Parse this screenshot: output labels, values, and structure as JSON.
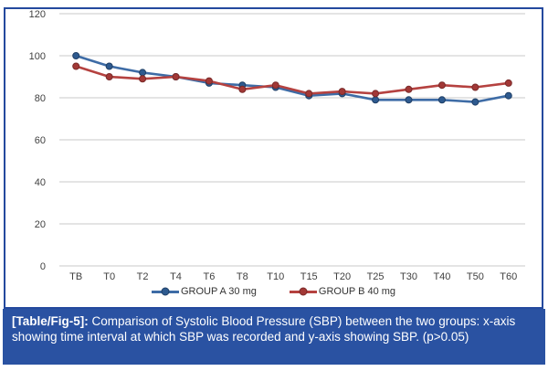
{
  "figure": {
    "caption_label": "[Table/Fig-5]:",
    "caption_text": "Comparison of Systolic Blood Pressure (SBP) between the two groups: x-axis showing time interval at which SBP was recorded and y-axis showing SBP. (p>0.05)"
  },
  "colors": {
    "frame_border": "#24499E",
    "caption_bg": "#2A52A2",
    "caption_text": "#FFFFFF",
    "gridline": "#C8C8C8",
    "axis_text": "#3F3F3F",
    "chart_bg": "#FFFFFF"
  },
  "chart_data": {
    "type": "line",
    "title": "",
    "xlabel": "",
    "ylabel": "",
    "categories": [
      "TB",
      "T0",
      "T2",
      "T4",
      "T6",
      "T8",
      "T10",
      "T15",
      "T20",
      "T25",
      "T30",
      "T40",
      "T50",
      "T60"
    ],
    "series": [
      {
        "name": "GROUP A 30 mg",
        "line_color": "#3E6CA6",
        "marker_fill": "#2E5A8F",
        "marker_stroke": "#1F3F66",
        "values": [
          100,
          95,
          92,
          90,
          87,
          86,
          85,
          81,
          82,
          79,
          79,
          79,
          78,
          81
        ]
      },
      {
        "name": "GROUP B 40 mg",
        "line_color": "#B54240",
        "marker_fill": "#A23836",
        "marker_stroke": "#7A2A29",
        "values": [
          95,
          90,
          89,
          90,
          88,
          84,
          86,
          82,
          83,
          82,
          84,
          86,
          85,
          87
        ]
      }
    ],
    "ylim": [
      0,
      120
    ],
    "yticks": [
      0,
      20,
      40,
      60,
      80,
      100,
      120
    ],
    "grid": true,
    "legend_position": "bottom"
  }
}
